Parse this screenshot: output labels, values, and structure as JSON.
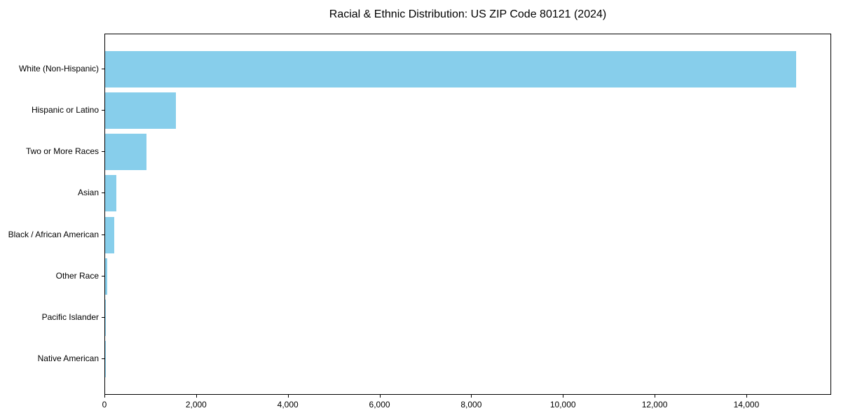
{
  "chart_data": {
    "type": "bar",
    "orientation": "horizontal",
    "title": "Racial & Ethnic Distribution: US ZIP Code 80121 (2024)",
    "categories": [
      "White (Non-Hispanic)",
      "Hispanic or Latino",
      "Two or More Races",
      "Asian",
      "Black / African American",
      "Other Race",
      "Pacific Islander",
      "Native American"
    ],
    "values": [
      15070,
      1540,
      895,
      240,
      195,
      40,
      15,
      10
    ],
    "xlabel": "",
    "ylabel": "",
    "xlim": [
      0,
      15820
    ],
    "xticks": [
      0,
      2000,
      4000,
      6000,
      8000,
      10000,
      12000,
      14000
    ],
    "xtick_labels": [
      "0",
      "2,000",
      "4,000",
      "6,000",
      "8,000",
      "10,000",
      "12,000",
      "14,000"
    ],
    "bar_color": "#87CEEB",
    "spine_color": "#000000",
    "background_color": "#ffffff",
    "grid": false,
    "legend": false
  }
}
